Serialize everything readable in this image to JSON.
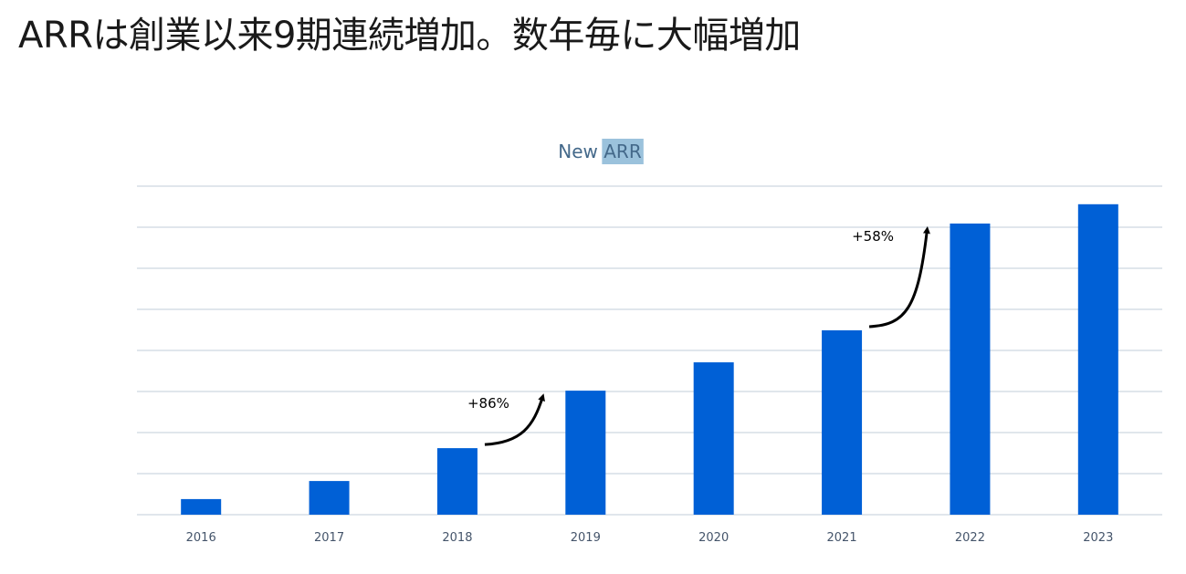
{
  "headline": "ARRは創業以来9期連続増加。数年毎に大幅増加",
  "chart_data": {
    "type": "bar",
    "title": "New ARR",
    "title_highlighted_word": "ARR",
    "categories": [
      "2016",
      "2017",
      "2018",
      "2019",
      "2020",
      "2021",
      "2022",
      "2023"
    ],
    "values": [
      0.38,
      0.82,
      1.62,
      3.02,
      3.71,
      4.49,
      7.09,
      7.56
    ],
    "xlabel": "",
    "ylabel": "",
    "ylim": [
      0,
      8
    ],
    "y_gridlines": [
      1,
      2,
      3,
      4,
      5,
      6,
      7,
      8
    ],
    "grid": true,
    "y_tick_labels_shown": false,
    "bar_color": "#0060d6",
    "grid_color": "#d5dee6",
    "annotations": [
      {
        "text": "+86%",
        "from_category": "2018",
        "to_category": "2019"
      },
      {
        "text": "+58%",
        "from_category": "2021",
        "to_category": "2022"
      }
    ]
  }
}
